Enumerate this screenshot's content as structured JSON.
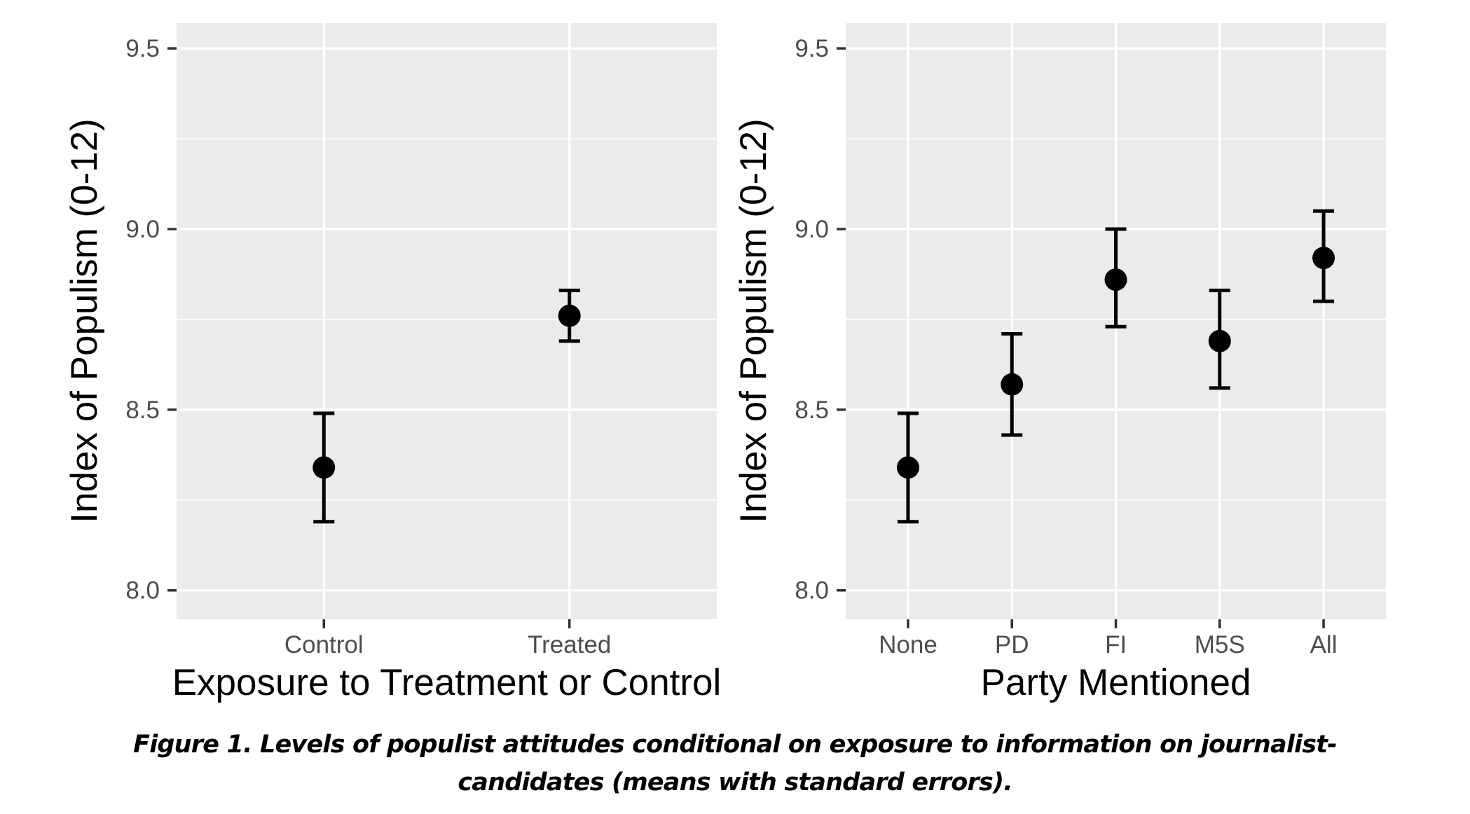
{
  "figure": {
    "caption_line1": "Figure 1. Levels of populist attitudes conditional on exposure to information on journalist-",
    "caption_line2": "candidates (means with standard errors)."
  },
  "style": {
    "background": "#FFFFFF",
    "panel_background": "#EBEBEB",
    "gridline_color": "#FFFFFF",
    "point_color": "#000000",
    "errorbar_color": "#000000",
    "tick_mark_color": "#333333",
    "tick_label_color": "#4D4D4D",
    "axis_title_color": "#000000"
  },
  "chart_data": [
    {
      "type": "scatter",
      "title": "",
      "xlabel": "Exposure to Treatment or Control",
      "ylabel": "Index of Populism (0-12)",
      "categories": [
        "Control",
        "Treated"
      ],
      "series": [
        {
          "name": "mean with standard error",
          "points": [
            {
              "category": "Control",
              "mean": 8.34,
              "lower": 8.19,
              "upper": 8.49
            },
            {
              "category": "Treated",
              "mean": 8.76,
              "lower": 8.69,
              "upper": 8.83
            }
          ]
        }
      ],
      "ylim": [
        7.92,
        9.57
      ],
      "yticks": [
        8.0,
        8.5,
        9.0,
        9.5
      ],
      "ytick_labels": [
        "8.0",
        "8.5",
        "9.0",
        "9.5"
      ],
      "minor_gridlines": [
        8.25,
        8.75,
        9.25
      ],
      "grid": true,
      "legend": false
    },
    {
      "type": "scatter",
      "title": "",
      "xlabel": "Party Mentioned",
      "ylabel": "Index of Populism (0-12)",
      "categories": [
        "None",
        "PD",
        "FI",
        "M5S",
        "All"
      ],
      "series": [
        {
          "name": "mean with standard error",
          "points": [
            {
              "category": "None",
              "mean": 8.34,
              "lower": 8.19,
              "upper": 8.49
            },
            {
              "category": "PD",
              "mean": 8.57,
              "lower": 8.43,
              "upper": 8.71
            },
            {
              "category": "FI",
              "mean": 8.86,
              "lower": 8.73,
              "upper": 9.0
            },
            {
              "category": "M5S",
              "mean": 8.69,
              "lower": 8.56,
              "upper": 8.83
            },
            {
              "category": "All",
              "mean": 8.92,
              "lower": 8.8,
              "upper": 9.05
            }
          ]
        }
      ],
      "ylim": [
        7.92,
        9.57
      ],
      "yticks": [
        8.0,
        8.5,
        9.0,
        9.5
      ],
      "ytick_labels": [
        "8.0",
        "8.5",
        "9.0",
        "9.5"
      ],
      "minor_gridlines": [
        8.25,
        8.75,
        9.25
      ],
      "grid": true,
      "legend": false
    }
  ]
}
